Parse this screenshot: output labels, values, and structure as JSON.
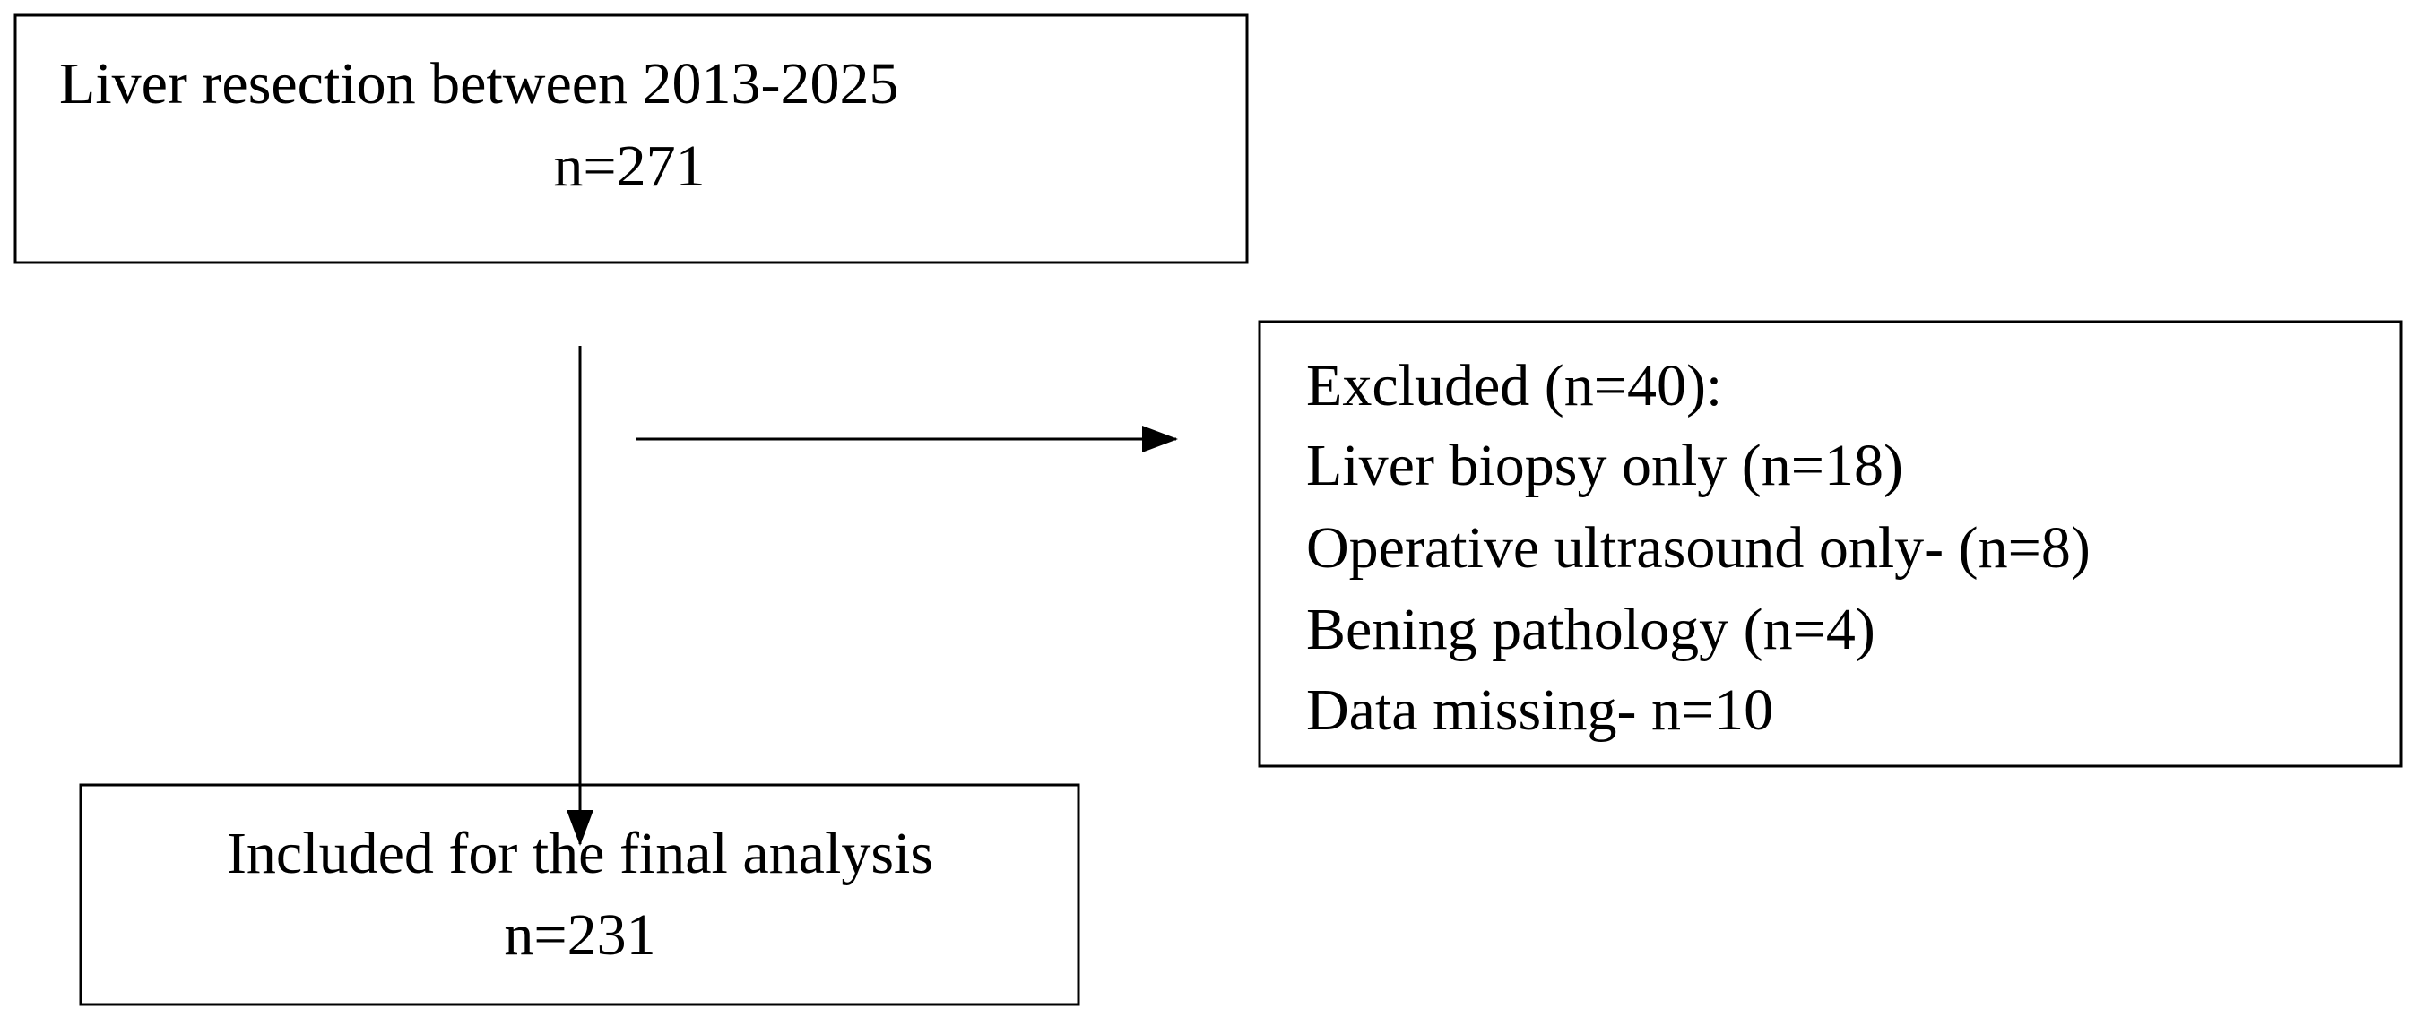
{
  "nodes": [
    {
      "lines": [
        "Liver resection between 2013-2025",
        "n=271"
      ]
    },
    {
      "lines": [
        "Excluded (n=40):",
        "Liver biopsy only (n=18)",
        "Operative ultrasound only- (n=8)",
        "Bening pathology (n=4)",
        "Data missing- n=10"
      ]
    },
    {
      "lines": [
        "Included for the final analysis",
        "n=231"
      ]
    }
  ]
}
